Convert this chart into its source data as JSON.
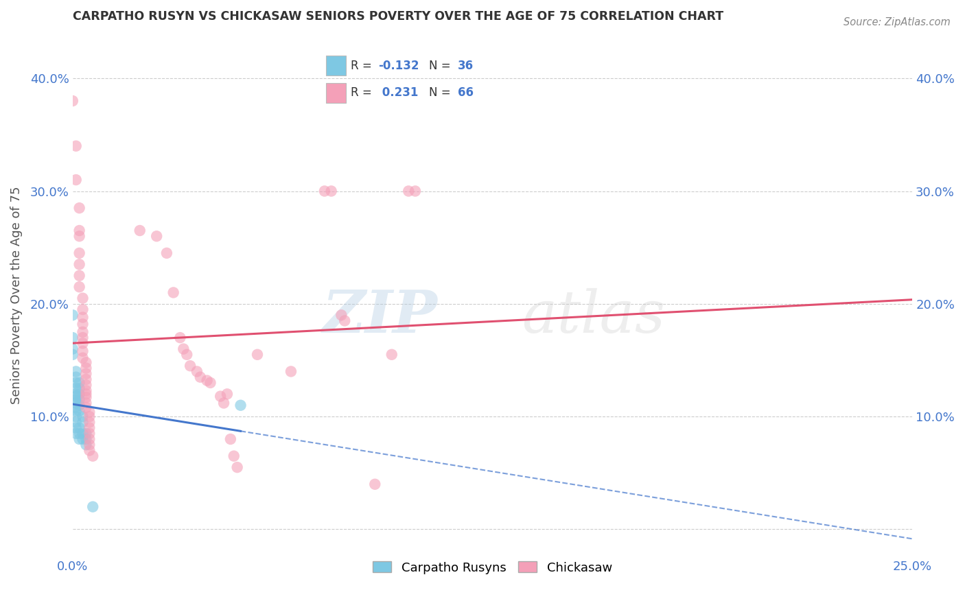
{
  "title": "CARPATHO RUSYN VS CHICKASAW SENIORS POVERTY OVER THE AGE OF 75 CORRELATION CHART",
  "source": "Source: ZipAtlas.com",
  "ylabel": "Seniors Poverty Over the Age of 75",
  "xlim": [
    0.0,
    0.25
  ],
  "ylim": [
    -0.025,
    0.44
  ],
  "blue_R": -0.132,
  "blue_N": 36,
  "pink_R": 0.231,
  "pink_N": 66,
  "blue_color": "#7ec8e3",
  "pink_color": "#f4a0b8",
  "blue_line_color": "#4477cc",
  "pink_line_color": "#e05070",
  "blue_scatter": [
    [
      0.0,
      0.19
    ],
    [
      0.0,
      0.17
    ],
    [
      0.0,
      0.16
    ],
    [
      0.0,
      0.155
    ],
    [
      0.001,
      0.14
    ],
    [
      0.001,
      0.135
    ],
    [
      0.001,
      0.13
    ],
    [
      0.001,
      0.125
    ],
    [
      0.001,
      0.12
    ],
    [
      0.001,
      0.118
    ],
    [
      0.001,
      0.115
    ],
    [
      0.001,
      0.112
    ],
    [
      0.001,
      0.108
    ],
    [
      0.001,
      0.105
    ],
    [
      0.001,
      0.1
    ],
    [
      0.001,
      0.095
    ],
    [
      0.001,
      0.09
    ],
    [
      0.001,
      0.085
    ],
    [
      0.002,
      0.13
    ],
    [
      0.002,
      0.125
    ],
    [
      0.002,
      0.12
    ],
    [
      0.002,
      0.115
    ],
    [
      0.002,
      0.11
    ],
    [
      0.002,
      0.105
    ],
    [
      0.002,
      0.09
    ],
    [
      0.002,
      0.085
    ],
    [
      0.002,
      0.08
    ],
    [
      0.003,
      0.1
    ],
    [
      0.003,
      0.095
    ],
    [
      0.003,
      0.085
    ],
    [
      0.003,
      0.08
    ],
    [
      0.004,
      0.085
    ],
    [
      0.004,
      0.08
    ],
    [
      0.004,
      0.075
    ],
    [
      0.05,
      0.11
    ],
    [
      0.006,
      0.02
    ]
  ],
  "pink_scatter": [
    [
      0.0,
      0.38
    ],
    [
      0.001,
      0.34
    ],
    [
      0.001,
      0.31
    ],
    [
      0.002,
      0.285
    ],
    [
      0.002,
      0.265
    ],
    [
      0.002,
      0.26
    ],
    [
      0.002,
      0.245
    ],
    [
      0.002,
      0.235
    ],
    [
      0.002,
      0.225
    ],
    [
      0.002,
      0.215
    ],
    [
      0.003,
      0.205
    ],
    [
      0.003,
      0.195
    ],
    [
      0.003,
      0.188
    ],
    [
      0.003,
      0.182
    ],
    [
      0.003,
      0.175
    ],
    [
      0.003,
      0.17
    ],
    [
      0.003,
      0.165
    ],
    [
      0.003,
      0.158
    ],
    [
      0.003,
      0.152
    ],
    [
      0.004,
      0.148
    ],
    [
      0.004,
      0.143
    ],
    [
      0.004,
      0.138
    ],
    [
      0.004,
      0.133
    ],
    [
      0.004,
      0.128
    ],
    [
      0.004,
      0.123
    ],
    [
      0.004,
      0.12
    ],
    [
      0.004,
      0.117
    ],
    [
      0.004,
      0.112
    ],
    [
      0.004,
      0.108
    ],
    [
      0.005,
      0.104
    ],
    [
      0.005,
      0.1
    ],
    [
      0.005,
      0.095
    ],
    [
      0.005,
      0.09
    ],
    [
      0.005,
      0.085
    ],
    [
      0.005,
      0.08
    ],
    [
      0.005,
      0.075
    ],
    [
      0.005,
      0.07
    ],
    [
      0.006,
      0.065
    ],
    [
      0.02,
      0.265
    ],
    [
      0.025,
      0.26
    ],
    [
      0.028,
      0.245
    ],
    [
      0.03,
      0.21
    ],
    [
      0.032,
      0.17
    ],
    [
      0.033,
      0.16
    ],
    [
      0.034,
      0.155
    ],
    [
      0.035,
      0.145
    ],
    [
      0.037,
      0.14
    ],
    [
      0.038,
      0.135
    ],
    [
      0.04,
      0.132
    ],
    [
      0.041,
      0.13
    ],
    [
      0.044,
      0.118
    ],
    [
      0.045,
      0.112
    ],
    [
      0.046,
      0.12
    ],
    [
      0.047,
      0.08
    ],
    [
      0.048,
      0.065
    ],
    [
      0.049,
      0.055
    ],
    [
      0.055,
      0.155
    ],
    [
      0.065,
      0.14
    ],
    [
      0.075,
      0.3
    ],
    [
      0.077,
      0.3
    ],
    [
      0.08,
      0.19
    ],
    [
      0.081,
      0.185
    ],
    [
      0.09,
      0.04
    ],
    [
      0.095,
      0.155
    ],
    [
      0.1,
      0.3
    ],
    [
      0.102,
      0.3
    ]
  ],
  "watermark_zip": "ZIP",
  "watermark_atlas": "atlas",
  "background_color": "#ffffff",
  "grid_color": "#cccccc",
  "title_color": "#333333",
  "tick_color": "#4477cc",
  "legend_label_color": "#333333"
}
